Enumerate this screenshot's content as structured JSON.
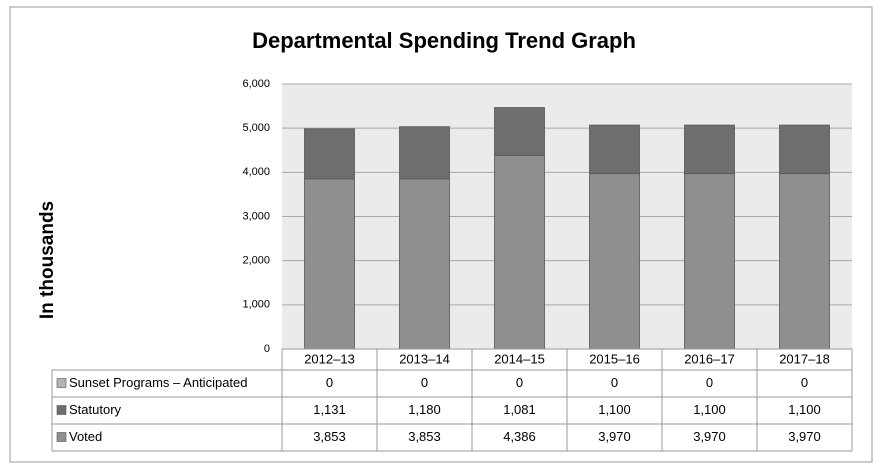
{
  "chart_data": {
    "type": "stacked_bar",
    "title": "Departmental Spending Trend Graph",
    "y_label": "In thousands",
    "categories": [
      "2012–13",
      "2013–14",
      "2014–15",
      "2015–16",
      "2016–17",
      "2017–18"
    ],
    "series": [
      {
        "name": "Sunset Programs – Anticipated",
        "color": "#b3b3b3",
        "values": [
          0,
          0,
          0,
          0,
          0,
          0
        ]
      },
      {
        "name": "Statutory",
        "color": "#6e6e6e",
        "values": [
          1131,
          1180,
          1081,
          1100,
          1100,
          1100
        ],
        "value_labels": [
          "1,131",
          "1,180",
          "1,081",
          "1,100",
          "1,100",
          "1,100"
        ]
      },
      {
        "name": "Voted",
        "color": "#8f8f8f",
        "values": [
          3853,
          3853,
          4386,
          3970,
          3970,
          3970
        ],
        "value_labels": [
          "3,853",
          "3,853",
          "4,386",
          "3,970",
          "3,970",
          "3,970"
        ]
      }
    ],
    "ylim": [
      0,
      6000
    ],
    "yticks": [
      0,
      {
        "value": 1000,
        "label": "1,000"
      },
      {
        "value": 2000,
        "label": "2,000"
      },
      {
        "value": 3000,
        "label": "3,000"
      },
      {
        "value": 4000,
        "label": "4,000"
      },
      {
        "value": 5000,
        "label": "5,000"
      },
      {
        "value": 6000,
        "label": "6,000"
      }
    ],
    "grid": true
  }
}
